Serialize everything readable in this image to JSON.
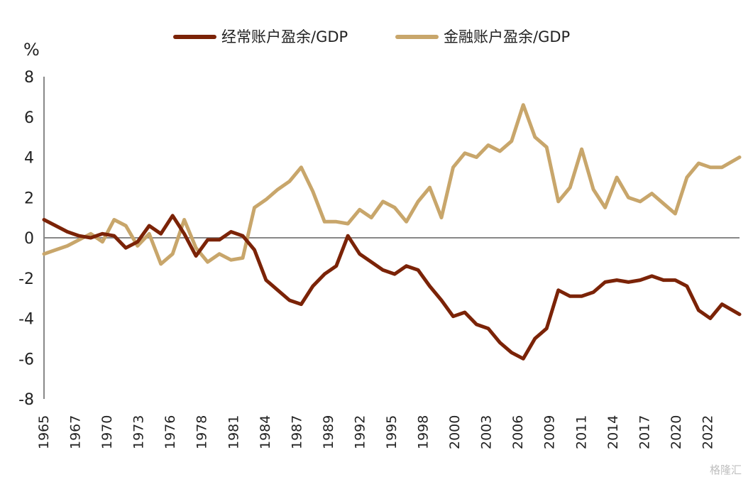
{
  "chart_data": {
    "type": "line",
    "title": "",
    "ylabel": "%",
    "ylim": [
      -8,
      8
    ],
    "yticks": [
      8,
      6,
      4,
      2,
      0,
      -2,
      -4,
      -6,
      -8
    ],
    "xlim": [
      1965,
      2024.5
    ],
    "xtick_labels": [
      "1965",
      "1967",
      "1970",
      "1973",
      "1976",
      "1978",
      "1981",
      "1984",
      "1987",
      "1989",
      "1992",
      "1995",
      "1998",
      "2000",
      "2003",
      "2006",
      "2009",
      "2011",
      "2014",
      "2017",
      "2020",
      "2022"
    ],
    "legend_position": "top-center",
    "series": [
      {
        "name": "经常账户盈余/GDP",
        "color": "#7B2307",
        "x": [
          1965,
          1966,
          1967,
          1968,
          1969,
          1970,
          1971,
          1972,
          1973,
          1974,
          1975,
          1976,
          1977,
          1978,
          1979,
          1980,
          1981,
          1982,
          1983,
          1984,
          1985,
          1986,
          1987,
          1988,
          1989,
          1990,
          1991,
          1992,
          1993,
          1994,
          1995,
          1996,
          1997,
          1998,
          1999,
          2000,
          2001,
          2002,
          2003,
          2004,
          2005,
          2006,
          2007,
          2008,
          2009,
          2010,
          2011,
          2012,
          2013,
          2014,
          2015,
          2016,
          2017,
          2018,
          2019,
          2020,
          2021,
          2022,
          2023,
          2024.5
        ],
        "values": [
          0.9,
          0.6,
          0.3,
          0.1,
          0.0,
          0.2,
          0.1,
          -0.5,
          -0.2,
          0.6,
          0.2,
          1.1,
          0.2,
          -0.9,
          -0.1,
          -0.1,
          0.3,
          0.1,
          -0.6,
          -2.1,
          -2.6,
          -3.1,
          -3.3,
          -2.4,
          -1.8,
          -1.4,
          0.1,
          -0.8,
          -1.2,
          -1.6,
          -1.8,
          -1.4,
          -1.6,
          -2.4,
          -3.1,
          -3.9,
          -3.7,
          -4.3,
          -4.5,
          -5.2,
          -5.7,
          -6.0,
          -5.0,
          -4.5,
          -2.6,
          -2.9,
          -2.9,
          -2.7,
          -2.2,
          -2.1,
          -2.2,
          -2.1,
          -1.9,
          -2.1,
          -2.1,
          -2.4,
          -3.6,
          -4.0,
          -3.3,
          -3.8
        ]
      },
      {
        "name": "金融账户盈余/GDP",
        "color": "#C8A66B",
        "x": [
          1965,
          1966,
          1967,
          1968,
          1969,
          1970,
          1971,
          1972,
          1973,
          1974,
          1975,
          1976,
          1977,
          1978,
          1979,
          1980,
          1981,
          1982,
          1983,
          1984,
          1985,
          1986,
          1987,
          1988,
          1989,
          1990,
          1991,
          1992,
          1993,
          1994,
          1995,
          1996,
          1997,
          1998,
          1999,
          2000,
          2001,
          2002,
          2003,
          2004,
          2005,
          2006,
          2007,
          2008,
          2009,
          2010,
          2011,
          2012,
          2013,
          2014,
          2015,
          2016,
          2017,
          2018,
          2019,
          2020,
          2021,
          2022,
          2023,
          2024.5
        ],
        "values": [
          -0.8,
          -0.6,
          -0.4,
          -0.1,
          0.2,
          -0.2,
          0.9,
          0.6,
          -0.4,
          0.2,
          -1.3,
          -0.8,
          0.9,
          -0.5,
          -1.2,
          -0.8,
          -1.1,
          -1.0,
          1.5,
          1.9,
          2.4,
          2.8,
          3.5,
          2.3,
          0.8,
          0.8,
          0.7,
          1.4,
          1.0,
          1.8,
          1.5,
          0.8,
          1.8,
          2.5,
          1.0,
          3.5,
          4.2,
          4.0,
          4.6,
          4.3,
          4.8,
          6.6,
          5.0,
          4.5,
          1.8,
          2.5,
          4.4,
          2.4,
          1.5,
          3.0,
          2.0,
          1.8,
          2.2,
          1.7,
          1.2,
          3.0,
          3.7,
          3.5,
          3.5,
          4.0
        ]
      }
    ]
  },
  "watermark": "格隆汇"
}
